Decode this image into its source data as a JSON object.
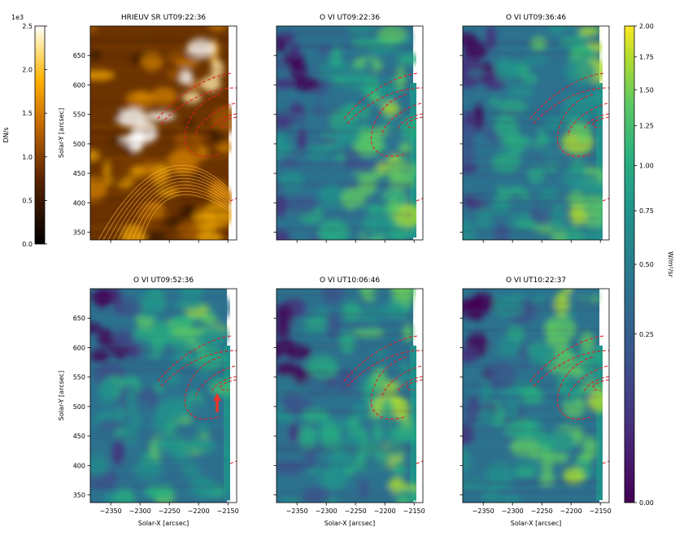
{
  "chart_data": [
    {
      "type": "heatmap",
      "title": "HRIEUV SR UT09:22:36",
      "xlabel": "",
      "ylabel": "Solar-Y [arcsec]",
      "xlim": [
        -2385,
        -2135
      ],
      "ylim": [
        337,
        700
      ],
      "xticks": [],
      "yticks": [
        650,
        600,
        550,
        500,
        450,
        400,
        350
      ],
      "colormap": "afmhot",
      "overlay": "red dashed loop contours"
    },
    {
      "type": "heatmap",
      "title": "O VI UT09:22:36",
      "xlabel": "",
      "ylabel": "",
      "xlim": [
        -2385,
        -2135
      ],
      "ylim": [
        337,
        700
      ],
      "xticks": [],
      "yticks": [],
      "colormap": "viridis",
      "overlay": "red dashed loop contours"
    },
    {
      "type": "heatmap",
      "title": "O VI UT09:36:46",
      "xlabel": "",
      "ylabel": "",
      "xlim": [
        -2385,
        -2135
      ],
      "ylim": [
        337,
        700
      ],
      "xticks": [],
      "yticks": [],
      "colormap": "viridis",
      "overlay": "red dashed loop contours"
    },
    {
      "type": "heatmap",
      "title": "O VI UT09:52:36",
      "xlabel": "Solar-X [arcsec]",
      "ylabel": "Solar-Y [arcsec]",
      "xlim": [
        -2385,
        -2135
      ],
      "ylim": [
        337,
        700
      ],
      "xticks": [
        -2350,
        -2300,
        -2250,
        -2200,
        -2150
      ],
      "yticks": [
        650,
        600,
        550,
        500,
        450,
        400,
        350
      ],
      "colormap": "viridis",
      "overlay": "red dashed loop contours with red arrow"
    },
    {
      "type": "heatmap",
      "title": "O VI UT10:06:46",
      "xlabel": "Solar-X [arcsec]",
      "ylabel": "",
      "xlim": [
        -2385,
        -2135
      ],
      "ylim": [
        337,
        700
      ],
      "xticks": [
        -2350,
        -2300,
        -2250,
        -2200,
        -2150
      ],
      "yticks": [],
      "colormap": "viridis",
      "overlay": "red dashed loop contours"
    },
    {
      "type": "heatmap",
      "title": "O VI UT10:22:37",
      "xlabel": "Solar-X [arcsec]",
      "ylabel": "",
      "xlim": [
        -2385,
        -2135
      ],
      "ylim": [
        337,
        700
      ],
      "xticks": [
        -2350,
        -2300,
        -2250,
        -2200,
        -2150
      ],
      "yticks": [],
      "colormap": "viridis",
      "overlay": "red dashed loop contours"
    }
  ],
  "colorbars": {
    "left": {
      "label": "DN/s",
      "multiplier": "1e3",
      "range": [
        0,
        2.5
      ],
      "ticks": [
        "0.0",
        "0.5",
        "1.0",
        "1.5",
        "2.0",
        "2.5"
      ],
      "colormap": "afmhot"
    },
    "right": {
      "label": "W/m²/sr",
      "scale": "sqrt",
      "range": [
        0,
        2
      ],
      "ticks": [
        "0.00",
        "0.25",
        "0.50",
        "0.75",
        "1.00",
        "1.25",
        "1.50",
        "1.75",
        "2.00"
      ],
      "colormap": "viridis"
    }
  }
}
